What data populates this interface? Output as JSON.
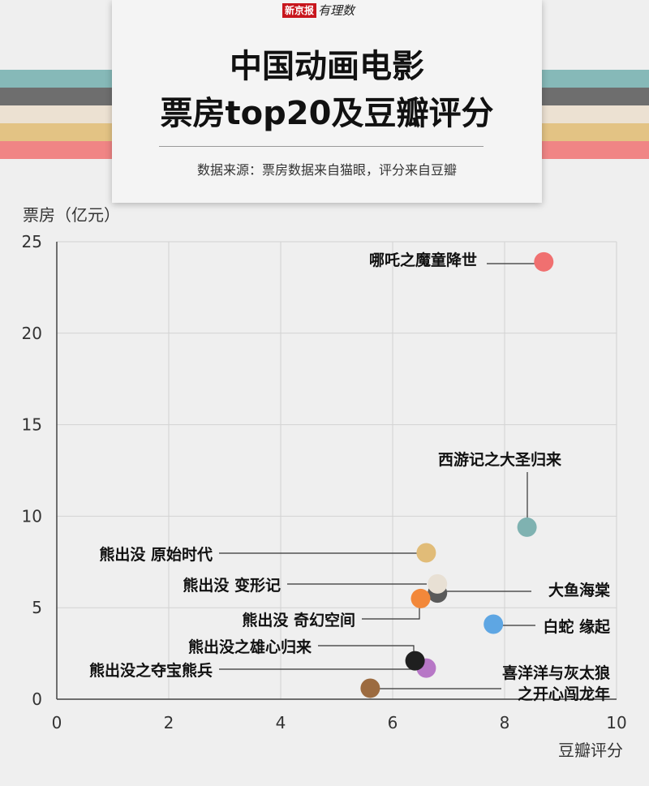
{
  "header": {
    "brand_box": "新京报",
    "brand_script": "有理数",
    "title_line1": "中国动画电影",
    "title_line2": "票房top20及豆瓣评分",
    "source": "数据来源：票房数据来自猫眼，评分来自豆瓣"
  },
  "colors": {
    "stripes": [
      "#86b9b8",
      "#6e6e6e",
      "#ece1d2",
      "#e3c384",
      "#f08585"
    ]
  },
  "chart_data": {
    "type": "scatter",
    "title": "中国动画电影票房top20及豆瓣评分",
    "xlabel": "豆瓣评分",
    "ylabel": "票房（亿元）",
    "xlim": [
      0,
      10
    ],
    "ylim": [
      0,
      25
    ],
    "xticks": [
      0,
      2,
      4,
      6,
      8,
      10
    ],
    "yticks": [
      0,
      5,
      10,
      15,
      20,
      25
    ],
    "grid": true,
    "points": [
      {
        "x": 8.7,
        "y": 23.9,
        "color": "#f07070",
        "label": "哪吒之魔童降世",
        "lines": [
          "哪吒之魔童降世"
        ]
      },
      {
        "x": 8.4,
        "y": 9.4,
        "color": "#7fb2b1",
        "label": "西游记之大圣归来",
        "lines": [
          "西游记之大圣归来"
        ]
      },
      {
        "x": 6.6,
        "y": 8.0,
        "color": "#e1bc78",
        "label": "熊出没 原始时代",
        "lines": [
          "熊出没 原始时代"
        ]
      },
      {
        "x": 6.8,
        "y": 5.8,
        "color": "#5a5a5a",
        "label": "大鱼海棠",
        "lines": [
          "大鱼海棠"
        ]
      },
      {
        "x": 6.8,
        "y": 6.3,
        "color": "#e8e0d4",
        "label": "熊出没 变形记",
        "lines": [
          "熊出没 变形记"
        ]
      },
      {
        "x": 6.5,
        "y": 5.5,
        "color": "#f2883a",
        "label": "熊出没 奇幻空间",
        "lines": [
          "熊出没 奇幻空间"
        ]
      },
      {
        "x": 7.8,
        "y": 4.1,
        "color": "#5ea6e3",
        "label": "白蛇 缘起",
        "lines": [
          "白蛇 缘起"
        ]
      },
      {
        "x": 6.4,
        "y": 2.1,
        "color": "#1f1f1f",
        "label": "熊出没之雄心归来",
        "lines": [
          "熊出没之雄心归来"
        ]
      },
      {
        "x": 6.6,
        "y": 1.7,
        "color": "#b777c6",
        "label": "熊出没之夺宝熊兵",
        "lines": [
          "熊出没之夺宝熊兵"
        ]
      },
      {
        "x": 5.6,
        "y": 0.6,
        "color": "#9c6b40",
        "label": "喜洋洋与灰太狼之开心闯龙年",
        "lines": [
          "喜洋洋与灰太狼",
          "之开心闯龙年"
        ]
      }
    ]
  }
}
